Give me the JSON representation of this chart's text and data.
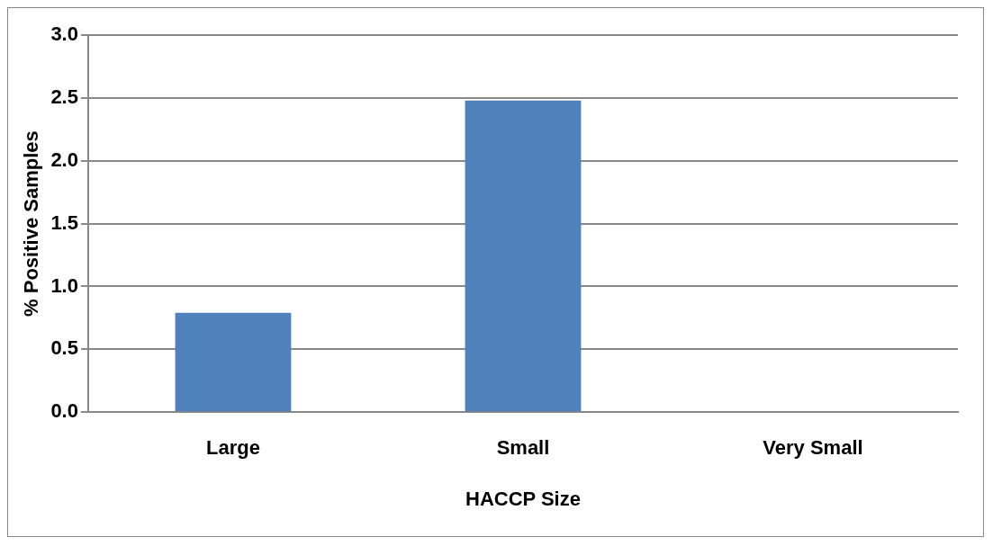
{
  "chart_data": {
    "type": "bar",
    "xlabel": "HACCP Size",
    "ylabel": "% Positive Samples",
    "categories": [
      "Large",
      "Small",
      "Very Small"
    ],
    "values": [
      0.79,
      2.48,
      0
    ],
    "color": "#4f81bd",
    "ylim": [
      0,
      3
    ],
    "yticks": [
      {
        "value": 0,
        "label": "0.0"
      },
      {
        "value": 0.5,
        "label": "0.5"
      },
      {
        "value": 1,
        "label": "1.0"
      },
      {
        "value": 1.5,
        "label": "1.5"
      },
      {
        "value": 2,
        "label": "2.0"
      },
      {
        "value": 2.5,
        "label": "2.5"
      },
      {
        "value": 3,
        "label": "3.0"
      }
    ],
    "grid": "y"
  }
}
